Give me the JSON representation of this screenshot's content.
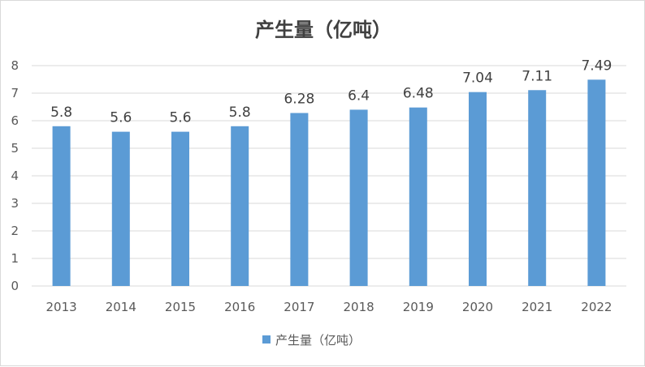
{
  "chart_data": {
    "type": "bar",
    "title": "产生量（亿吨）",
    "categories": [
      "2013",
      "2014",
      "2015",
      "2016",
      "2017",
      "2018",
      "2019",
      "2020",
      "2021",
      "2022"
    ],
    "series": [
      {
        "name": "产生量（亿吨）",
        "values": [
          5.8,
          5.6,
          5.6,
          5.8,
          6.28,
          6.4,
          6.48,
          7.04,
          7.11,
          7.49
        ],
        "color": "#5B9BD5"
      }
    ],
    "xlabel": "",
    "ylabel": "",
    "ylim": [
      0,
      8
    ],
    "yticks": [
      0,
      1,
      2,
      3,
      4,
      5,
      6,
      7,
      8
    ],
    "grid": true,
    "legend": "bottom"
  }
}
